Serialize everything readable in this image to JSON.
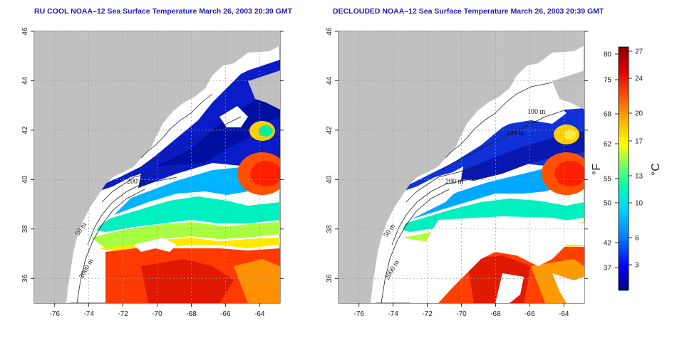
{
  "titles": {
    "left": "RU COOL NOAA–12 Sea Surface Temperature March 26, 2003 20:39 GMT",
    "right": "DECLOUDED NOAA–12 Sea Surface Temperature March 26, 2003 20:39 GMT"
  },
  "axes": {
    "lon_ticks": [
      "-76",
      "-74",
      "-72",
      "-70",
      "-68",
      "-66",
      "-64"
    ],
    "lat_ticks": [
      "36",
      "38",
      "40",
      "42",
      "44",
      "46"
    ],
    "lon_range": [
      -77.2,
      -62.8
    ],
    "lat_range": [
      35.0,
      46.0
    ]
  },
  "colorbar": {
    "fahrenheit_ticks": [
      "80",
      "75",
      "68",
      "62",
      "55",
      "50",
      "42",
      "37"
    ],
    "celsius_ticks": [
      "27",
      "24",
      "20",
      "17",
      "13",
      "10",
      "6",
      "3"
    ],
    "fahrenheit_unit": "°F",
    "celsius_unit": "°C",
    "colors": [
      "#00008b",
      "#0000ff",
      "#0080ff",
      "#00d0ff",
      "#00ffb0",
      "#80ff60",
      "#ffff00",
      "#ffb000",
      "#ff5000",
      "#e00000",
      "#8b0000"
    ]
  },
  "contour_labels": {
    "left": [
      "50 m",
      "200 m",
      "2000 m"
    ],
    "right": [
      "100 m",
      "100 m",
      "200 m",
      "50 m",
      "2000 m"
    ]
  },
  "colors": {
    "land": "#c0c0c0",
    "cloud": "#ffffff",
    "grid": "#9a9a9a"
  }
}
